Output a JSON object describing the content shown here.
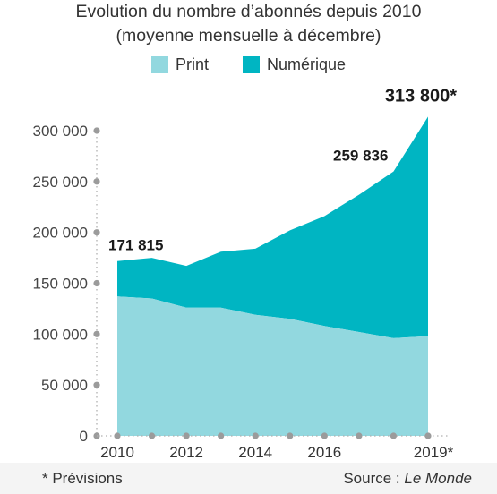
{
  "chart_data": {
    "type": "area",
    "title": "Evolution du nombre d’abonnés depuis 2010",
    "subtitle": "(moyenne mensuelle à décembre)",
    "x": [
      2010,
      2011,
      2012,
      2013,
      2014,
      2015,
      2016,
      2017,
      2018,
      2019
    ],
    "x_tick_labels": [
      "2010",
      "2012",
      "2014",
      "2016",
      "2019*"
    ],
    "x_tick_years": [
      2010,
      2012,
      2014,
      2016,
      2019
    ],
    "ylim": [
      0,
      300000
    ],
    "y_ticks": [
      0,
      50000,
      100000,
      150000,
      200000,
      250000,
      300000
    ],
    "y_tick_labels": [
      "0",
      "50 000",
      "100 000",
      "150 000",
      "200 000",
      "250 000",
      "300 000"
    ],
    "series": [
      {
        "name": "Print",
        "color": "#92d8df",
        "values": [
          137000,
          135000,
          126000,
          126000,
          119000,
          115000,
          108000,
          102000,
          96000,
          98000
        ]
      },
      {
        "name": "Numérique",
        "color": "#00b5c2",
        "values": [
          34815,
          40000,
          41000,
          55000,
          65000,
          87000,
          108000,
          135000,
          163836,
          215800
        ]
      }
    ],
    "totals": [
      171815,
      175000,
      167000,
      181000,
      184000,
      202000,
      216000,
      237000,
      259836,
      313800
    ],
    "annotations": [
      {
        "year": 2010,
        "text": "171 815"
      },
      {
        "year": 2018,
        "text": "259 836"
      },
      {
        "year": 2019,
        "text": "313 800*"
      }
    ],
    "grid": false
  },
  "footer": {
    "note": "* Prévisions",
    "source_prefix": "Source : ",
    "source_name": "Le Monde"
  }
}
